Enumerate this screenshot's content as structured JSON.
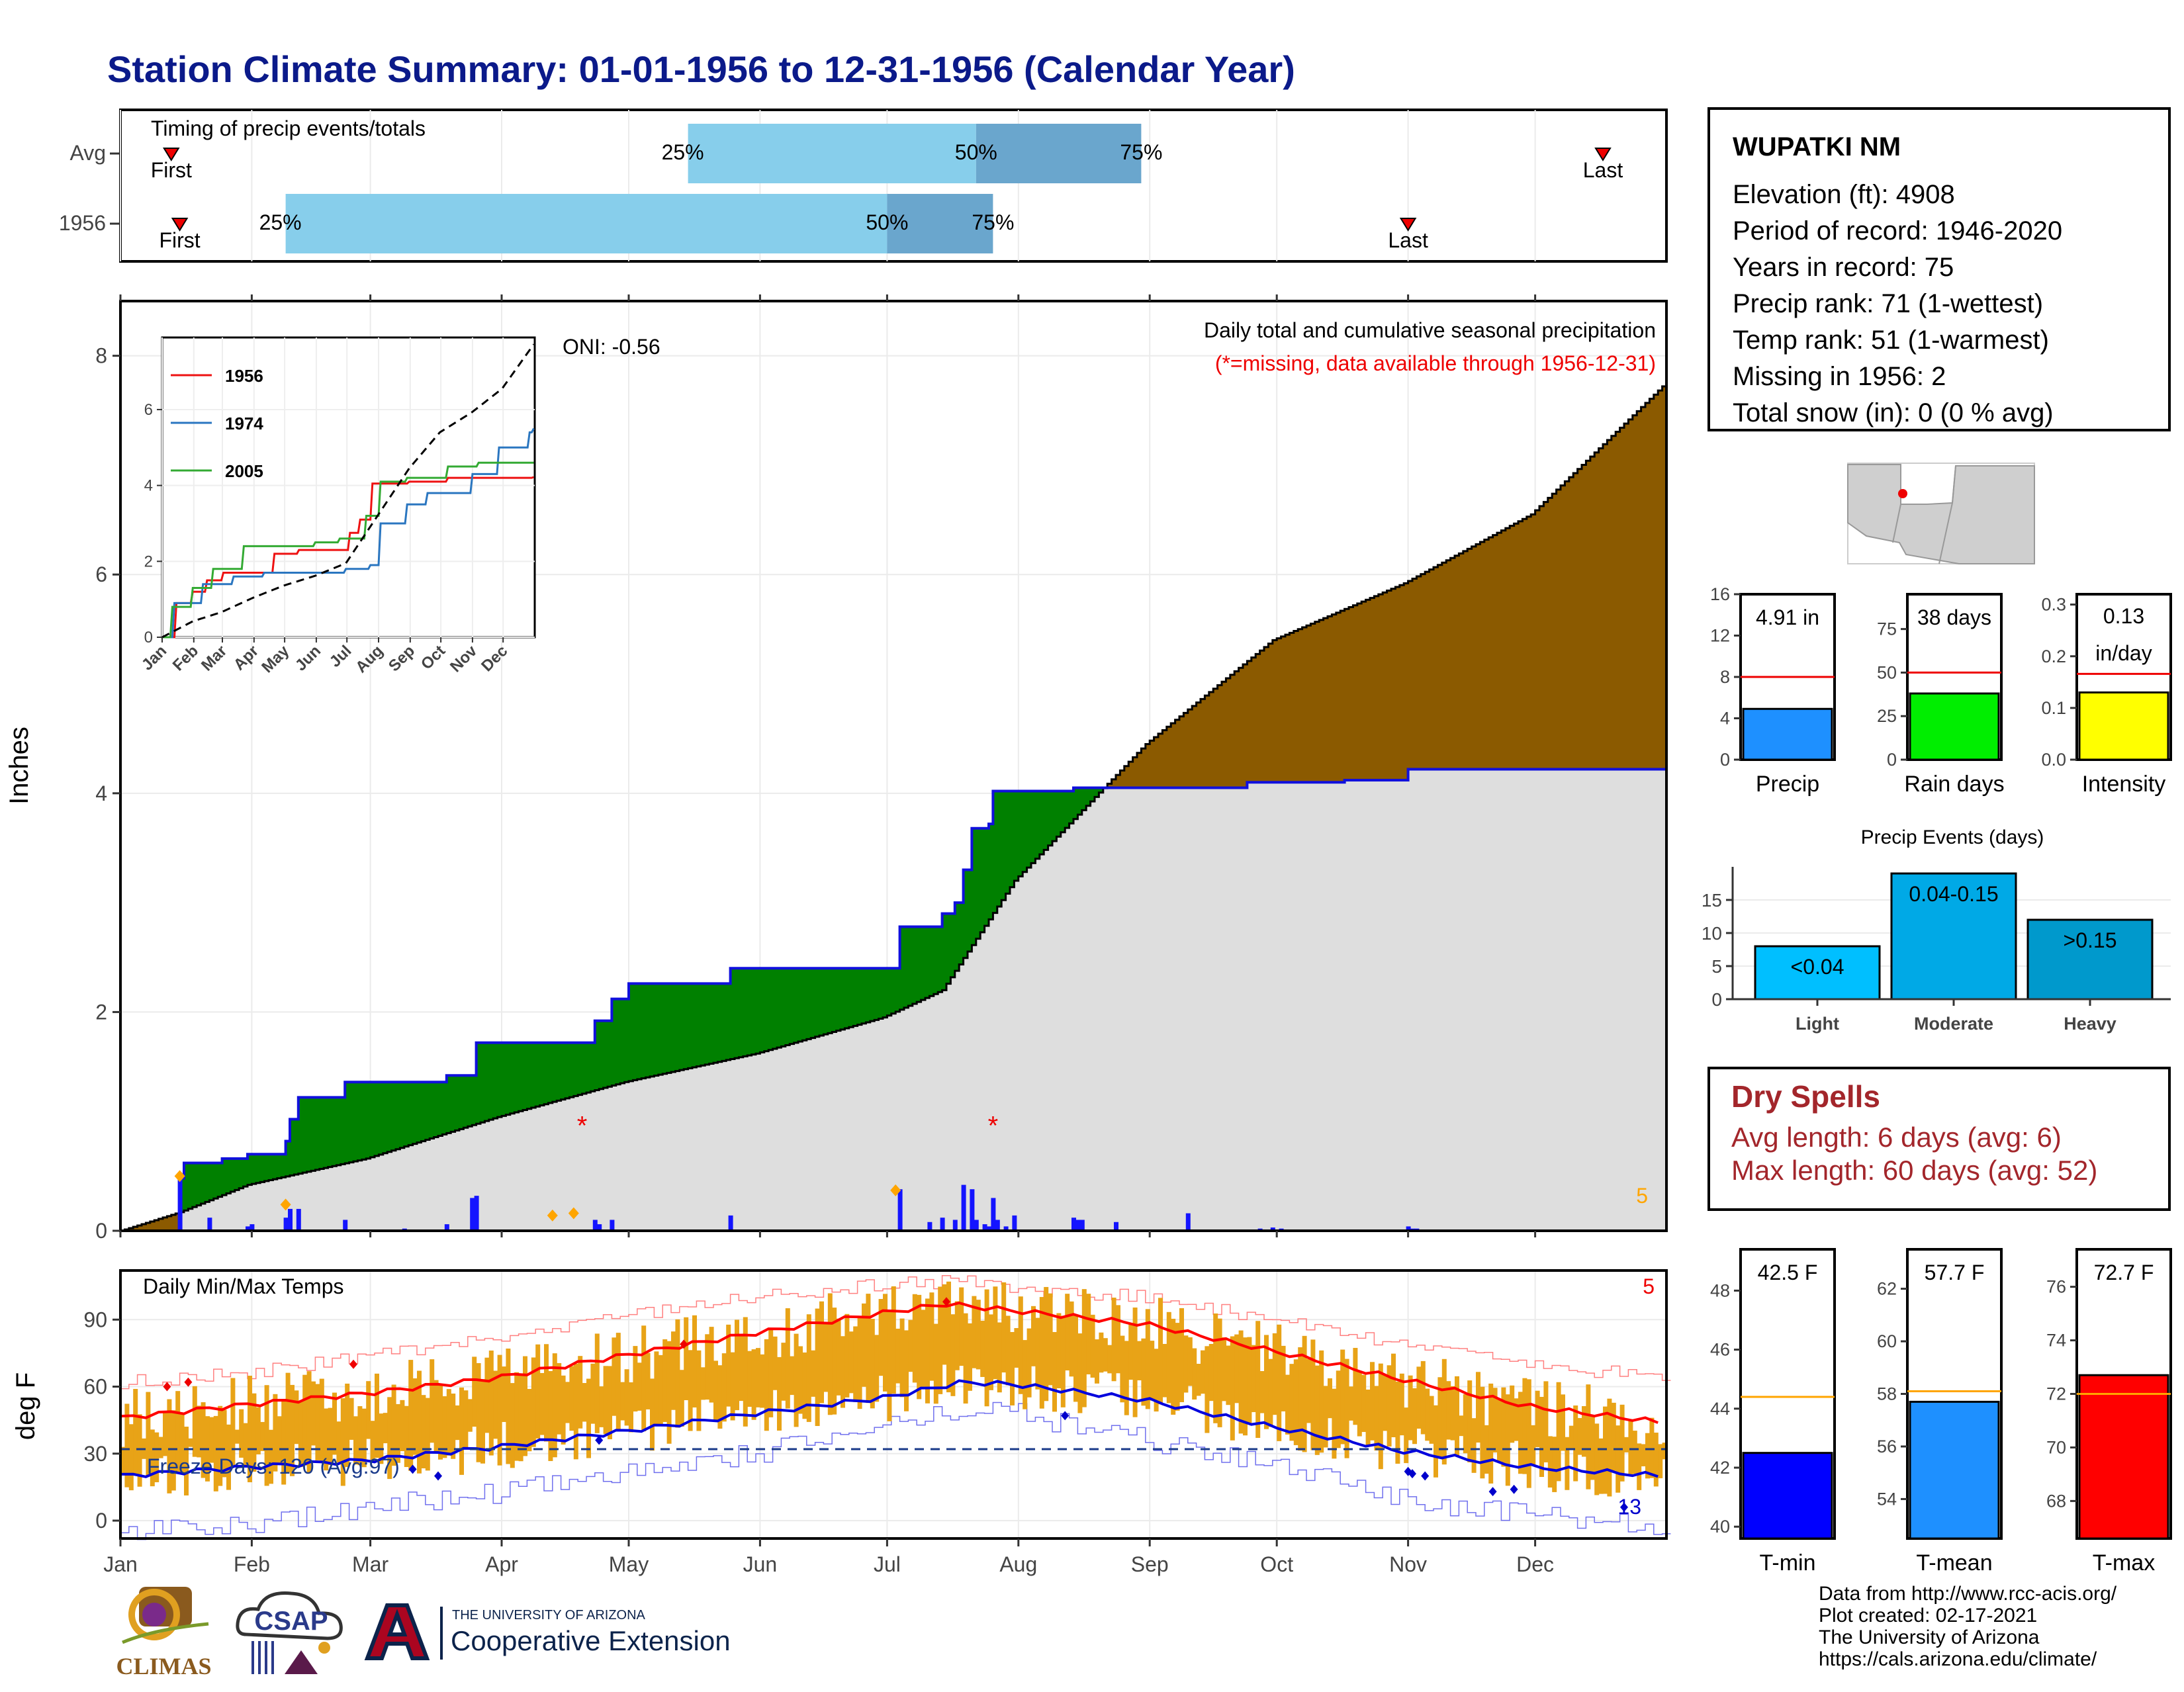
{
  "title": "Station Climate Summary: 01-01-1956 to 12-31-1956 (Calendar Year)",
  "station": {
    "name": "WUPATKI NM",
    "lines": [
      "Elevation (ft): 4908",
      "Period of record: 1946-2020",
      "Years in record: 75",
      "Precip rank: 71 (1-wettest)",
      "Temp rank: 51 (1-warmest)",
      "Missing in 1956: 2",
      "Total snow (in): 0 (0 % avg)"
    ]
  },
  "dry_spells": {
    "title": "Dry Spells",
    "avg_length": "Avg length: 6 days (avg: 6)",
    "max_length": "Max length: 60 days (avg: 52)"
  },
  "credits": {
    "line1": "Data from http://www.rcc-acis.org/",
    "line2": "Plot created: 02-17-2021",
    "line3": "The University of Arizona",
    "line4": "https://cals.arizona.edu/climate/"
  },
  "logos": {
    "climas": "CLIMAS",
    "csap": "CSAP",
    "ua_small": "THE UNIVERSITY OF ARIZONA",
    "ua_big": "Cooperative Extension"
  },
  "colors": {
    "title": "#0b1a8a",
    "wet_fill": "#008000",
    "dry_fill": "#8b5a00",
    "normal_fill": "#dedede",
    "daily_bar": "#1414ff",
    "temp_bar": "#e8a317",
    "tmax_line": "#ff0000",
    "tmin_line": "#0000dd"
  },
  "chart_data": [
    {
      "type": "bar",
      "title": "Timing of precip events/totals",
      "categories": [
        "Avg",
        "1956"
      ],
      "series": [
        {
          "name": "Avg",
          "first": "Jan 13",
          "p25": "May 15",
          "p50": "Jul 22",
          "p75": "Aug 30",
          "last": "Dec 17"
        },
        {
          "name": "1956",
          "first": "Jan 15",
          "p25": "Feb 9",
          "p50": "Jul 1",
          "p75": "Jul 26",
          "last": "Nov 1"
        }
      ],
      "labels": {
        "first": "First",
        "last": "Last",
        "p25": "25%",
        "p50": "50%",
        "p75": "75%"
      }
    },
    {
      "type": "area",
      "title": "Daily total and cumulative seasonal precipitation",
      "subtitle": "(*=missing, data available through 1956-12-31)",
      "ylabel": "Inches",
      "ylim": [
        0,
        8.5
      ],
      "yticks": [
        0,
        2,
        4,
        6,
        8
      ],
      "months": [
        "Jan",
        "Feb",
        "Mar",
        "Apr",
        "May",
        "Jun",
        "Jul",
        "Aug",
        "Sep",
        "Oct",
        "Nov",
        "Dec"
      ],
      "oni": "ONI: -0.56",
      "corner_count": "5",
      "cumulative_1956": [
        [
          1,
          0
        ],
        [
          15,
          0.48
        ],
        [
          16,
          0.62
        ],
        [
          25,
          0.66
        ],
        [
          31,
          0.7
        ],
        [
          40,
          0.82
        ],
        [
          41,
          1.02
        ],
        [
          43,
          1.22
        ],
        [
          54,
          1.36
        ],
        [
          68,
          1.36
        ],
        [
          78,
          1.42
        ],
        [
          84,
          1.42
        ],
        [
          85,
          1.72
        ],
        [
          109,
          1.72
        ],
        [
          113,
          1.92
        ],
        [
          117,
          2.12
        ],
        [
          121,
          2.26
        ],
        [
          145,
          2.4
        ],
        [
          184,
          2.4
        ],
        [
          185,
          2.78
        ],
        [
          195,
          2.9
        ],
        [
          198,
          3.0
        ],
        [
          200,
          3.3
        ],
        [
          202,
          3.68
        ],
        [
          206,
          3.72
        ],
        [
          207,
          4.02
        ],
        [
          226,
          4.05
        ],
        [
          253,
          4.05
        ],
        [
          267,
          4.1
        ],
        [
          290,
          4.12
        ],
        [
          305,
          4.22
        ],
        [
          365,
          4.22
        ]
      ],
      "cumulative_avg": [
        [
          1,
          0
        ],
        [
          15,
          0.17
        ],
        [
          31,
          0.42
        ],
        [
          59,
          0.66
        ],
        [
          90,
          1.04
        ],
        [
          120,
          1.36
        ],
        [
          151,
          1.62
        ],
        [
          181,
          1.95
        ],
        [
          195,
          2.2
        ],
        [
          212,
          3.2
        ],
        [
          243,
          4.45
        ],
        [
          273,
          5.4
        ],
        [
          304,
          5.92
        ],
        [
          334,
          6.55
        ],
        [
          365,
          7.72
        ]
      ],
      "daily": [
        [
          15,
          0.48
        ],
        [
          22,
          0.12
        ],
        [
          31,
          0.04
        ],
        [
          32,
          0.06
        ],
        [
          40,
          0.12
        ],
        [
          41,
          0.2
        ],
        [
          43,
          0.2
        ],
        [
          54,
          0.1
        ],
        [
          68,
          0.02
        ],
        [
          78,
          0.06
        ],
        [
          84,
          0.3
        ],
        [
          85,
          0.32
        ],
        [
          113,
          0.1
        ],
        [
          114,
          0.06
        ],
        [
          117,
          0.1
        ],
        [
          145,
          0.14
        ],
        [
          185,
          0.38
        ],
        [
          192,
          0.08
        ],
        [
          195,
          0.12
        ],
        [
          198,
          0.1
        ],
        [
          200,
          0.42
        ],
        [
          202,
          0.38
        ],
        [
          203,
          0.1
        ],
        [
          205,
          0.06
        ],
        [
          206,
          0.04
        ],
        [
          207,
          0.3
        ],
        [
          208,
          0.1
        ],
        [
          210,
          0.04
        ],
        [
          212,
          0.14
        ],
        [
          226,
          0.12
        ],
        [
          227,
          0.1
        ],
        [
          228,
          0.1
        ],
        [
          236,
          0.08
        ],
        [
          253,
          0.16
        ],
        [
          270,
          0.02
        ],
        [
          273,
          0.03
        ],
        [
          275,
          0.02
        ],
        [
          305,
          0.04
        ],
        [
          306,
          0.02
        ],
        [
          307,
          0.02
        ]
      ],
      "missing_markers": [
        [
          "Apr 20",
          1.0
        ],
        [
          "Jul 26",
          1.0
        ]
      ],
      "extreme_markers": [
        [
          15,
          0.5
        ],
        [
          40,
          0.24
        ],
        [
          103,
          0.14
        ],
        [
          108,
          0.16
        ],
        [
          184,
          0.37
        ]
      ],
      "inset": {
        "yticks": [
          0,
          2,
          4,
          6,
          8
        ],
        "months": [
          "Jan",
          "Feb",
          "Mar",
          "Apr",
          "May",
          "Jun",
          "Jul",
          "Aug",
          "Sep",
          "Oct",
          "Nov",
          "Dec"
        ],
        "series": [
          {
            "name": "1956",
            "color": "#ee1111",
            "values": [
              [
                1,
                0
              ],
              [
                15,
                0.9
              ],
              [
                30,
                1.2
              ],
              [
                45,
                1.5
              ],
              [
                60,
                1.7
              ],
              [
                90,
                1.7
              ],
              [
                110,
                2.2
              ],
              [
                135,
                2.3
              ],
              [
                160,
                2.3
              ],
              [
                184,
                2.75
              ],
              [
                195,
                3.1
              ],
              [
                206,
                4.05
              ],
              [
                243,
                4.1
              ],
              [
                280,
                4.2
              ],
              [
                365,
                4.22
              ]
            ]
          },
          {
            "name": "1974",
            "color": "#2a76c0",
            "values": [
              [
                1,
                0
              ],
              [
                12,
                0.9
              ],
              [
                40,
                1.4
              ],
              [
                70,
                1.6
              ],
              [
                100,
                1.7
              ],
              [
                150,
                1.7
              ],
              [
                180,
                1.8
              ],
              [
                205,
                1.9
              ],
              [
                215,
                3.0
              ],
              [
                240,
                3.5
              ],
              [
                260,
                3.8
              ],
              [
                305,
                4.3
              ],
              [
                330,
                5.0
              ],
              [
                360,
                5.4
              ],
              [
                365,
                5.5
              ]
            ]
          },
          {
            "name": "2005",
            "color": "#33aa33",
            "values": [
              [
                1,
                0
              ],
              [
                10,
                0.8
              ],
              [
                30,
                1.3
              ],
              [
                50,
                1.8
              ],
              [
                80,
                2.4
              ],
              [
                110,
                2.4
              ],
              [
                150,
                2.5
              ],
              [
                175,
                2.6
              ],
              [
                200,
                3.2
              ],
              [
                215,
                4.1
              ],
              [
                240,
                4.2
              ],
              [
                280,
                4.5
              ],
              [
                310,
                4.6
              ],
              [
                365,
                4.6
              ]
            ]
          },
          {
            "name": "Avg",
            "color": "#000000",
            "values": [
              [
                1,
                0
              ],
              [
                31,
                0.42
              ],
              [
                59,
                0.66
              ],
              [
                90,
                1.04
              ],
              [
                120,
                1.36
              ],
              [
                151,
                1.62
              ],
              [
                181,
                1.95
              ],
              [
                212,
                3.2
              ],
              [
                243,
                4.45
              ],
              [
                273,
                5.4
              ],
              [
                304,
                5.92
              ],
              [
                334,
                6.55
              ],
              [
                365,
                7.72
              ]
            ]
          }
        ]
      }
    },
    {
      "type": "line",
      "title": "Daily Min/Max Temps",
      "ylabel": "deg F",
      "ylim": [
        -8,
        112
      ],
      "yticks": [
        0,
        30,
        60,
        90
      ],
      "months": [
        "Jan",
        "Feb",
        "Mar",
        "Apr",
        "May",
        "Jun",
        "Jul",
        "Aug",
        "Sep",
        "Oct",
        "Nov",
        "Dec"
      ],
      "freeze_label": "Freeze Days: 120 (Avg:97)",
      "freeze_line": 32,
      "count_hot": "5",
      "count_cold": "13",
      "tmax_avg": [
        [
          1,
          46
        ],
        [
          31,
          52
        ],
        [
          59,
          57
        ],
        [
          90,
          64
        ],
        [
          120,
          74
        ],
        [
          151,
          84
        ],
        [
          181,
          93
        ],
        [
          196,
          97
        ],
        [
          212,
          94
        ],
        [
          243,
          88
        ],
        [
          273,
          76
        ],
        [
          304,
          63
        ],
        [
          334,
          51
        ],
        [
          365,
          44
        ]
      ],
      "tmin_avg": [
        [
          1,
          20
        ],
        [
          31,
          24
        ],
        [
          59,
          27
        ],
        [
          90,
          33
        ],
        [
          120,
          40
        ],
        [
          151,
          48
        ],
        [
          181,
          55
        ],
        [
          200,
          62
        ],
        [
          212,
          61
        ],
        [
          243,
          54
        ],
        [
          273,
          42
        ],
        [
          304,
          31
        ],
        [
          334,
          24
        ],
        [
          365,
          20
        ]
      ],
      "record_high": [
        [
          1,
          62
        ],
        [
          31,
          66
        ],
        [
          59,
          74
        ],
        [
          90,
          82
        ],
        [
          120,
          92
        ],
        [
          151,
          100
        ],
        [
          181,
          106
        ],
        [
          200,
          107
        ],
        [
          212,
          104
        ],
        [
          243,
          100
        ],
        [
          273,
          90
        ],
        [
          304,
          78
        ],
        [
          334,
          70
        ],
        [
          365,
          64
        ]
      ],
      "record_low": [
        [
          1,
          -4
        ],
        [
          31,
          -2
        ],
        [
          59,
          6
        ],
        [
          90,
          12
        ],
        [
          120,
          22
        ],
        [
          151,
          30
        ],
        [
          181,
          42
        ],
        [
          200,
          50
        ],
        [
          212,
          48
        ],
        [
          243,
          36
        ],
        [
          273,
          26
        ],
        [
          304,
          10
        ],
        [
          334,
          2
        ],
        [
          365,
          -4
        ]
      ],
      "record_high_markers": [
        [
          12,
          60
        ],
        [
          17,
          62
        ],
        [
          56,
          70
        ],
        [
          134,
          79
        ],
        [
          196,
          98
        ]
      ],
      "record_low_markers": [
        [
          70,
          23
        ],
        [
          76,
          20
        ],
        [
          114,
          36
        ],
        [
          224,
          47
        ],
        [
          305,
          22
        ],
        [
          306,
          21
        ],
        [
          309,
          20
        ],
        [
          325,
          13
        ],
        [
          330,
          14
        ],
        [
          356,
          6
        ]
      ]
    },
    {
      "type": "bar",
      "title": "Precip",
      "panel": "precip-total",
      "ylim": [
        0,
        16
      ],
      "yticks": [
        0,
        4,
        8,
        12,
        16
      ],
      "value": 4.91,
      "avg": 8.0,
      "label": "4.91 in",
      "color": "#1e90ff"
    },
    {
      "type": "bar",
      "title": "Rain days",
      "panel": "rain-days",
      "ylim": [
        0,
        95
      ],
      "yticks": [
        0,
        25,
        50,
        75
      ],
      "value": 38,
      "avg": 50,
      "label": "38 days",
      "color": "#00ee00"
    },
    {
      "type": "bar",
      "title": "Intensity",
      "panel": "intensity",
      "ylim": [
        0,
        0.32
      ],
      "yticks": [
        0.0,
        0.1,
        0.2,
        0.3
      ],
      "value": 0.13,
      "avg": 0.166,
      "label_lines": [
        "0.13",
        "in/day"
      ],
      "color": "#ffff00"
    },
    {
      "type": "bar",
      "title": "Precip Events (days)",
      "categories": [
        "Light",
        "Moderate",
        "Heavy"
      ],
      "values": [
        8,
        19,
        12
      ],
      "labels": [
        "<0.04",
        "0.04-0.15",
        ">0.15"
      ],
      "colors": [
        "#00bfff",
        "#00a9e6",
        "#0099cc"
      ],
      "ylim": [
        0,
        20
      ],
      "yticks": [
        0,
        5,
        10,
        15
      ]
    },
    {
      "type": "bar",
      "title": "T-min",
      "ylim": [
        39.6,
        49.4
      ],
      "yticks": [
        40,
        42,
        44,
        46,
        48
      ],
      "value": 42.5,
      "avg": 44.4,
      "label": "42.5 F",
      "color": "#0000ff"
    },
    {
      "type": "bar",
      "title": "T-mean",
      "ylim": [
        52.5,
        63.5
      ],
      "yticks": [
        54,
        56,
        58,
        60,
        62
      ],
      "value": 57.7,
      "avg": 58.1,
      "label": "57.7 F",
      "color": "#1e90ff"
    },
    {
      "type": "bar",
      "title": "T-max",
      "ylim": [
        66.6,
        77.4
      ],
      "yticks": [
        68,
        70,
        72,
        74,
        76
      ],
      "value": 72.7,
      "avg": 72.0,
      "label": "72.7 F",
      "color": "#ff0000"
    }
  ]
}
